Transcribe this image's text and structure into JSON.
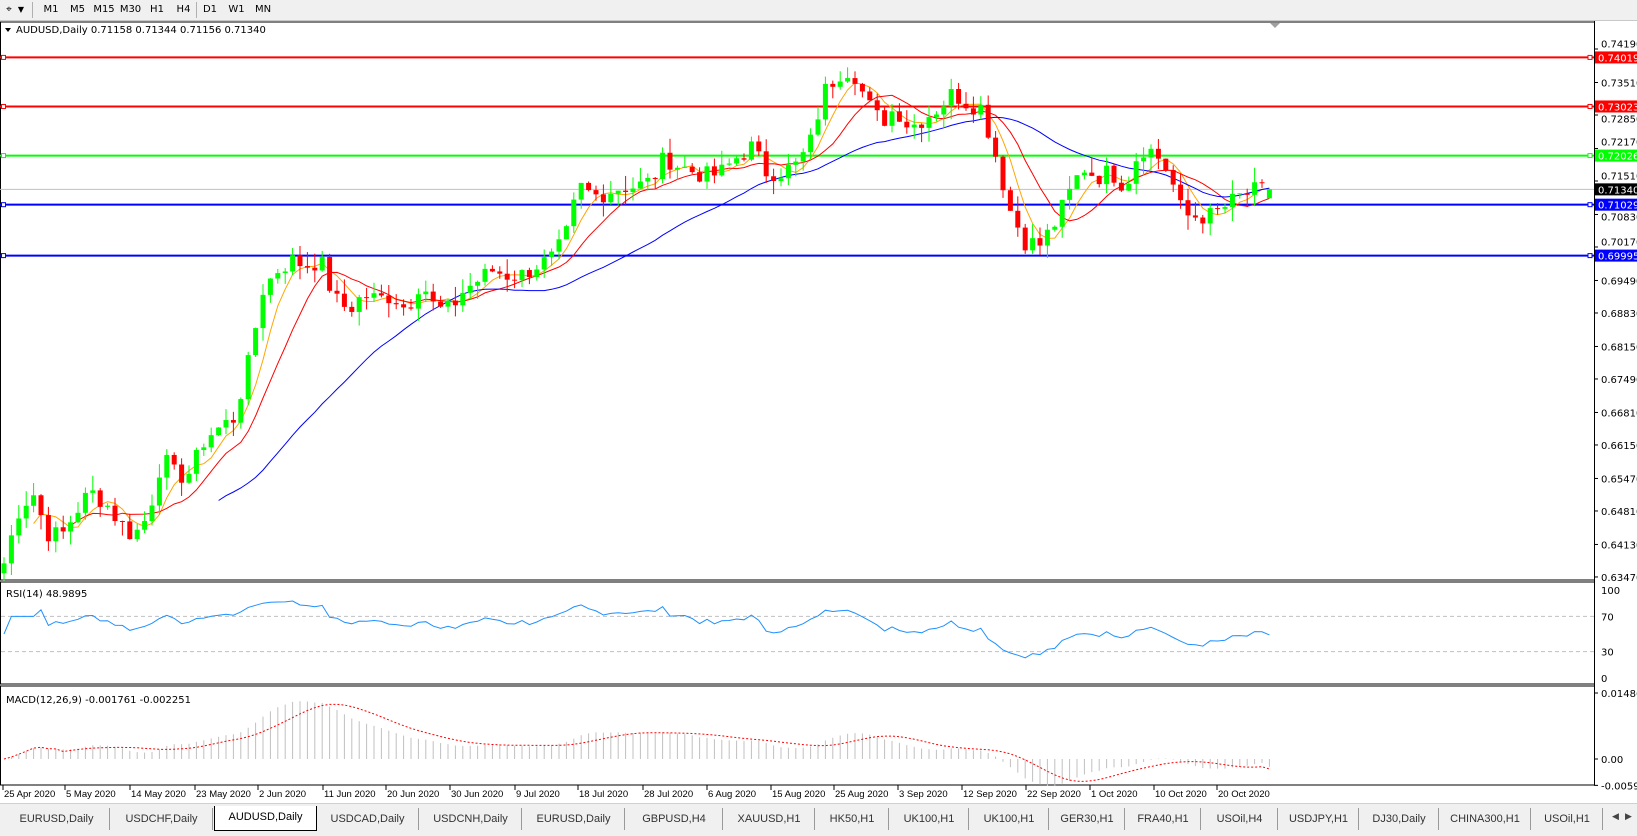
{
  "toolbar": {
    "periods": [
      "M1",
      "M5",
      "M15",
      "M30",
      "H1",
      "H4",
      "D1",
      "W1",
      "MN"
    ],
    "active_period": "D1"
  },
  "chart": {
    "header": "AUDUSD,Daily  0.71158 0.71344 0.71156 0.71340",
    "symbol": "AUDUSD,Daily",
    "ohlc": "0.71158 0.71344 0.71156 0.71340",
    "price_ticks": [
      "0.74190",
      "0.73510",
      "0.72850",
      "0.72170",
      "0.71510",
      "0.70830",
      "0.70170",
      "0.69490",
      "0.68830",
      "0.68150",
      "0.67490",
      "0.66810",
      "0.66150",
      "0.65470",
      "0.64810",
      "0.64130",
      "0.63470"
    ],
    "current_price": "0.71340",
    "hlines": [
      {
        "price": "0.74019",
        "color": "#ff0000"
      },
      {
        "price": "0.73023",
        "color": "#ff0000"
      },
      {
        "price": "0.72026",
        "color": "#00ff00"
      },
      {
        "price": "0.71029",
        "color": "#0000ff"
      },
      {
        "price": "0.69995",
        "color": "#0000ff"
      }
    ],
    "colors": {
      "bull": "#00ff00",
      "bear": "#ff0000",
      "ma_fast": "#ffa500",
      "ma_mid": "#ff0000",
      "ma_slow": "#0000ff",
      "rsi": "#1e90ff",
      "macd_hist": "#c0c0c0",
      "macd_signal": "#ff0000"
    },
    "date_labels": [
      "25 Apr 2020",
      "5 May 2020",
      "14 May 2020",
      "23 May 2020",
      "2 Jun 2020",
      "11 Jun 2020",
      "20 Jun 2020",
      "30 Jun 2020",
      "9 Jul 2020",
      "18 Jul 2020",
      "28 Jul 2020",
      "6 Aug 2020",
      "15 Aug 2020",
      "25 Aug 2020",
      "3 Sep 2020",
      "12 Sep 2020",
      "22 Sep 2020",
      "1 Oct 2020",
      "10 Oct 2020",
      "20 Oct 2020"
    ]
  },
  "rsi": {
    "label": "RSI(14) 48.9895",
    "ticks": [
      "100",
      "70",
      "30",
      "0"
    ]
  },
  "macd": {
    "label": "MACD(12,26,9) -0.001761 -0.002251",
    "ticks": [
      "0.014861",
      "0.00",
      "-0.005938"
    ]
  },
  "chart_data": {
    "type": "candlestick",
    "symbol": "AUDUSD",
    "timeframe": "Daily",
    "x_range": [
      "25 Apr 2020",
      "27 Oct 2020"
    ],
    "ylim": [
      0.6347,
      0.7419
    ],
    "approx_closes": [
      0.6375,
      0.648,
      0.652,
      0.6437,
      0.643,
      0.648,
      0.652,
      0.65,
      0.646,
      0.643,
      0.647,
      0.659,
      0.655,
      0.656,
      0.663,
      0.665,
      0.667,
      0.678,
      0.693,
      0.697,
      0.699,
      0.698,
      0.699,
      0.691,
      0.689,
      0.692,
      0.691,
      0.692,
      0.689,
      0.695,
      0.689,
      0.689,
      0.693,
      0.695,
      0.697,
      0.696,
      0.696,
      0.698,
      0.699,
      0.703,
      0.714,
      0.712,
      0.713,
      0.714,
      0.714,
      0.715,
      0.72,
      0.718,
      0.717,
      0.716,
      0.717,
      0.72,
      0.722,
      0.717,
      0.717,
      0.718,
      0.722,
      0.733,
      0.737,
      0.738,
      0.731,
      0.727,
      0.73,
      0.726,
      0.728,
      0.73,
      0.733,
      0.731,
      0.73,
      0.72,
      0.709,
      0.703,
      0.702,
      0.706,
      0.712,
      0.718,
      0.716,
      0.717,
      0.714,
      0.722,
      0.721,
      0.717,
      0.708,
      0.708,
      0.708,
      0.71,
      0.712,
      0.713,
      0.7134
    ],
    "last_ohlc": {
      "open": 0.71158,
      "high": 0.71344,
      "low": 0.71156,
      "close": 0.7134
    },
    "indicators": [
      "MA fast (orange)",
      "MA mid (red)",
      "MA slow (blue)",
      "RSI(14)",
      "MACD(12,26,9)"
    ],
    "rsi_last": 48.9895,
    "rsi_levels": [
      70,
      30
    ],
    "macd_last": -0.001761,
    "macd_signal_last": -0.002251
  },
  "tabs": {
    "items": [
      "EURUSD,Daily",
      "USDCHF,Daily",
      "AUDUSD,Daily",
      "USDCAD,Daily",
      "USDCNH,Daily",
      "EURUSD,Daily",
      "GBPUSD,H4",
      "XAUUSD,H1",
      "HK50,H1",
      "UK100,H1",
      "UK100,H1",
      "GER30,H1",
      "FRA40,H1",
      "USOil,H4",
      "USDJPY,H1",
      "DJ30,Daily",
      "CHINA300,H1",
      "USOil,H1"
    ],
    "active_index": 2
  }
}
